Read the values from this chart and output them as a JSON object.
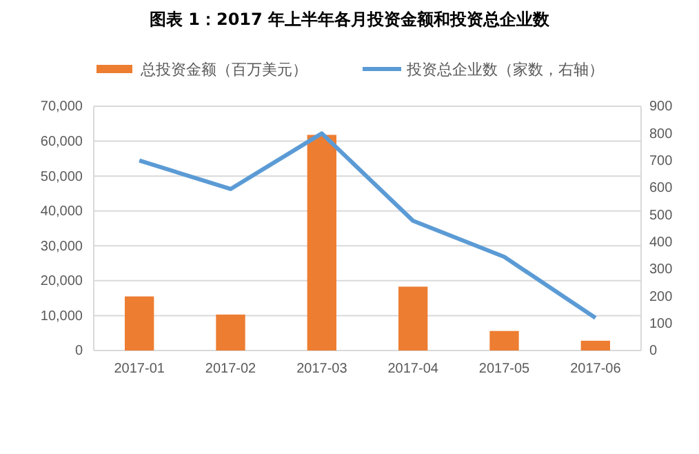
{
  "chart_data": {
    "type": "bar",
    "title": "图表 1：2017 年上半年各月投资金额和投资总企业数",
    "categories": [
      "2017-01",
      "2017-02",
      "2017-03",
      "2017-04",
      "2017-05",
      "2017-06"
    ],
    "series": [
      {
        "name": "总投资金额（百万美元）",
        "color": "#ed7d31",
        "values": [
          15500,
          10300,
          61800,
          18300,
          5600,
          2800
        ]
      },
      {
        "name": "投资总企业数（家数，右轴）",
        "type": "line",
        "axis": "y2",
        "color": "#5b9bd5",
        "values": [
          700,
          595,
          800,
          478,
          345,
          120
        ]
      }
    ],
    "ylim": [
      0,
      70000
    ],
    "yticks": [
      {
        "value": 0,
        "label": "0"
      },
      {
        "value": 10000,
        "label": "10,000"
      },
      {
        "value": 20000,
        "label": "20,000"
      },
      {
        "value": 30000,
        "label": "30,000"
      },
      {
        "value": 40000,
        "label": "40,000"
      },
      {
        "value": 50000,
        "label": "50,000"
      },
      {
        "value": 60000,
        "label": "60,000"
      },
      {
        "value": 70000,
        "label": "70,000"
      }
    ],
    "y2lim": [
      0,
      900
    ],
    "y2ticks": [
      0,
      100,
      200,
      300,
      400,
      500,
      600,
      700,
      800,
      900
    ],
    "grid": "y",
    "legend": "top",
    "marker": "none",
    "line_style": "solid"
  }
}
